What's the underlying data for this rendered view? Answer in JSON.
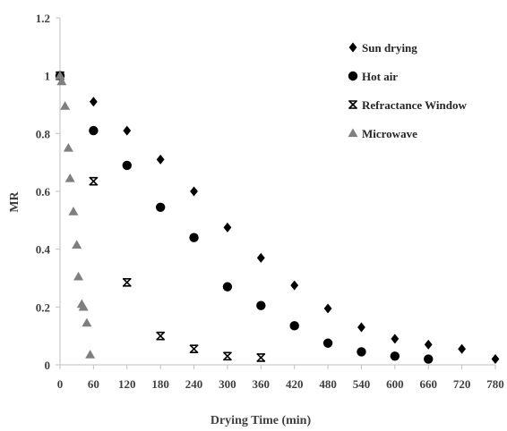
{
  "chart_data": {
    "type": "scatter",
    "xlabel": "Drying Time (min)",
    "ylabel": "MR",
    "xlim": [
      0,
      780
    ],
    "ylim": [
      0,
      1.2
    ],
    "xticks": [
      0,
      60,
      120,
      180,
      240,
      300,
      360,
      420,
      480,
      540,
      600,
      660,
      720,
      780
    ],
    "yticks": [
      0,
      0.2,
      0.4,
      0.6,
      0.8,
      1,
      1.2
    ],
    "ytick_labels": [
      "0",
      "0.2",
      "0.4",
      "0.6",
      "0.8",
      "1",
      "1.2"
    ],
    "grid": false,
    "legend_position": "top-right",
    "series": [
      {
        "name": "Sun drying",
        "marker": "diamond",
        "color": "#000000",
        "points": [
          [
            0,
            1.0
          ],
          [
            60,
            0.91
          ],
          [
            120,
            0.81
          ],
          [
            180,
            0.71
          ],
          [
            240,
            0.6
          ],
          [
            300,
            0.475
          ],
          [
            360,
            0.37
          ],
          [
            420,
            0.275
          ],
          [
            480,
            0.195
          ],
          [
            540,
            0.13
          ],
          [
            600,
            0.09
          ],
          [
            660,
            0.07
          ],
          [
            720,
            0.055
          ],
          [
            780,
            0.02
          ]
        ]
      },
      {
        "name": "Hot air",
        "marker": "circle",
        "color": "#000000",
        "points": [
          [
            0,
            1.0
          ],
          [
            60,
            0.81
          ],
          [
            120,
            0.69
          ],
          [
            180,
            0.545
          ],
          [
            240,
            0.44
          ],
          [
            300,
            0.27
          ],
          [
            360,
            0.205
          ],
          [
            420,
            0.135
          ],
          [
            480,
            0.075
          ],
          [
            540,
            0.045
          ],
          [
            600,
            0.03
          ],
          [
            660,
            0.02
          ]
        ]
      },
      {
        "name": "Refractance Window",
        "marker": "asterisk",
        "color": "#000000",
        "points": [
          [
            0,
            1.0
          ],
          [
            60,
            0.635
          ],
          [
            120,
            0.285
          ],
          [
            180,
            0.1
          ],
          [
            240,
            0.055
          ],
          [
            300,
            0.03
          ],
          [
            360,
            0.025
          ]
        ]
      },
      {
        "name": "Microwave",
        "marker": "triangle",
        "color": "#7f7f7f",
        "points": [
          [
            0,
            1.0
          ],
          [
            3,
            0.98
          ],
          [
            9,
            0.895
          ],
          [
            15,
            0.75
          ],
          [
            18,
            0.645
          ],
          [
            24,
            0.53
          ],
          [
            30,
            0.415
          ],
          [
            33,
            0.305
          ],
          [
            39,
            0.21
          ],
          [
            42,
            0.2
          ],
          [
            48,
            0.145
          ],
          [
            54,
            0.035
          ]
        ]
      }
    ]
  }
}
